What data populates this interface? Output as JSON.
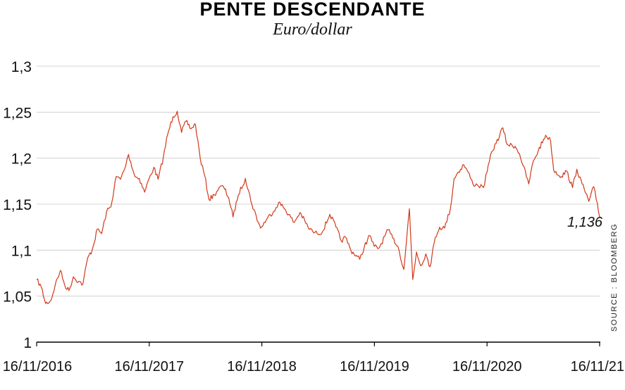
{
  "chart_data": {
    "type": "line",
    "title": "PENTE DESCENDANTE",
    "subtitle": "Euro/dollar",
    "source": "SOURCE : BLOOMBERG",
    "xlabel": "",
    "ylabel": "",
    "x_ticks": [
      "16/11/2016",
      "16/11/2017",
      "16/11/2018",
      "16/11/2019",
      "16/11/2020",
      "16/11/21"
    ],
    "y_ticks": [
      "1",
      "1,05",
      "1,1",
      "1,15",
      "1,2",
      "1,25",
      "1,3"
    ],
    "ylim": [
      1.0,
      1.3
    ],
    "xlim": [
      "2016-11-16",
      "2021-11-16"
    ],
    "grid": "horizontal",
    "end_label": "1,136",
    "series": [
      {
        "color": "#d2381a",
        "points": [
          [
            "2016-11-16",
            1.068
          ],
          [
            "2016-12-01",
            1.06
          ],
          [
            "2016-12-15",
            1.042
          ],
          [
            "2017-01-01",
            1.045
          ],
          [
            "2017-01-15",
            1.062
          ],
          [
            "2017-02-01",
            1.078
          ],
          [
            "2017-02-15",
            1.062
          ],
          [
            "2017-03-01",
            1.056
          ],
          [
            "2017-03-15",
            1.071
          ],
          [
            "2017-04-01",
            1.066
          ],
          [
            "2017-04-15",
            1.063
          ],
          [
            "2017-05-01",
            1.092
          ],
          [
            "2017-05-15",
            1.1
          ],
          [
            "2017-06-01",
            1.123
          ],
          [
            "2017-06-15",
            1.118
          ],
          [
            "2017-07-01",
            1.142
          ],
          [
            "2017-07-15",
            1.147
          ],
          [
            "2017-08-01",
            1.18
          ],
          [
            "2017-08-15",
            1.177
          ],
          [
            "2017-09-01",
            1.192
          ],
          [
            "2017-09-10",
            1.204
          ],
          [
            "2017-10-01",
            1.18
          ],
          [
            "2017-10-15",
            1.178
          ],
          [
            "2017-11-01",
            1.163
          ],
          [
            "2017-11-16",
            1.178
          ],
          [
            "2017-12-01",
            1.19
          ],
          [
            "2017-12-15",
            1.177
          ],
          [
            "2018-01-01",
            1.201
          ],
          [
            "2018-01-15",
            1.226
          ],
          [
            "2018-02-01",
            1.245
          ],
          [
            "2018-02-15",
            1.251
          ],
          [
            "2018-03-01",
            1.228
          ],
          [
            "2018-03-15",
            1.24
          ],
          [
            "2018-04-01",
            1.232
          ],
          [
            "2018-04-15",
            1.237
          ],
          [
            "2018-05-01",
            1.199
          ],
          [
            "2018-05-15",
            1.181
          ],
          [
            "2018-05-29",
            1.155
          ],
          [
            "2018-06-15",
            1.16
          ],
          [
            "2018-07-01",
            1.168
          ],
          [
            "2018-07-15",
            1.169
          ],
          [
            "2018-08-01",
            1.157
          ],
          [
            "2018-08-15",
            1.136
          ],
          [
            "2018-09-01",
            1.16
          ],
          [
            "2018-09-24",
            1.178
          ],
          [
            "2018-10-15",
            1.15
          ],
          [
            "2018-11-12",
            1.124
          ],
          [
            "2018-12-01",
            1.133
          ],
          [
            "2019-01-01",
            1.146
          ],
          [
            "2019-01-10",
            1.152
          ],
          [
            "2019-02-01",
            1.144
          ],
          [
            "2019-03-01",
            1.13
          ],
          [
            "2019-03-20",
            1.141
          ],
          [
            "2019-04-15",
            1.125
          ],
          [
            "2019-05-01",
            1.12
          ],
          [
            "2019-05-15",
            1.118
          ],
          [
            "2019-06-01",
            1.12
          ],
          [
            "2019-06-25",
            1.139
          ],
          [
            "2019-07-15",
            1.125
          ],
          [
            "2019-08-01",
            1.11
          ],
          [
            "2019-08-15",
            1.114
          ],
          [
            "2019-09-01",
            1.1
          ],
          [
            "2019-09-30",
            1.09
          ],
          [
            "2019-10-15",
            1.104
          ],
          [
            "2019-11-01",
            1.116
          ],
          [
            "2019-11-16",
            1.104
          ],
          [
            "2019-12-01",
            1.102
          ],
          [
            "2019-12-31",
            1.122
          ],
          [
            "2020-01-15",
            1.113
          ],
          [
            "2020-02-01",
            1.104
          ],
          [
            "2020-02-20",
            1.079
          ],
          [
            "2020-03-09",
            1.145
          ],
          [
            "2020-03-20",
            1.068
          ],
          [
            "2020-04-01",
            1.098
          ],
          [
            "2020-04-15",
            1.083
          ],
          [
            "2020-05-01",
            1.096
          ],
          [
            "2020-05-15",
            1.082
          ],
          [
            "2020-06-01",
            1.114
          ],
          [
            "2020-06-15",
            1.125
          ],
          [
            "2020-07-01",
            1.124
          ],
          [
            "2020-07-20",
            1.145
          ],
          [
            "2020-08-01",
            1.178
          ],
          [
            "2020-08-15",
            1.185
          ],
          [
            "2020-09-01",
            1.193
          ],
          [
            "2020-09-15",
            1.185
          ],
          [
            "2020-10-01",
            1.172
          ],
          [
            "2020-10-15",
            1.171
          ],
          [
            "2020-11-04",
            1.168
          ],
          [
            "2020-11-16",
            1.185
          ],
          [
            "2020-12-01",
            1.207
          ],
          [
            "2020-12-15",
            1.216
          ],
          [
            "2021-01-06",
            1.233
          ],
          [
            "2021-01-20",
            1.215
          ],
          [
            "2021-02-15",
            1.213
          ],
          [
            "2021-03-01",
            1.205
          ],
          [
            "2021-03-31",
            1.172
          ],
          [
            "2021-04-15",
            1.197
          ],
          [
            "2021-05-01",
            1.208
          ],
          [
            "2021-05-25",
            1.225
          ],
          [
            "2021-06-10",
            1.219
          ],
          [
            "2021-06-20",
            1.187
          ],
          [
            "2021-07-15",
            1.18
          ],
          [
            "2021-08-01",
            1.186
          ],
          [
            "2021-08-20",
            1.168
          ],
          [
            "2021-09-03",
            1.188
          ],
          [
            "2021-09-20",
            1.172
          ],
          [
            "2021-10-12",
            1.153
          ],
          [
            "2021-10-28",
            1.169
          ],
          [
            "2021-11-05",
            1.155
          ],
          [
            "2021-11-16",
            1.136
          ]
        ]
      }
    ]
  }
}
